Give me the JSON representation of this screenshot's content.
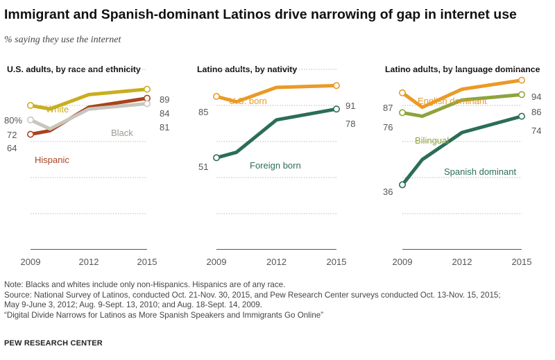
{
  "header": {
    "title": "Immigrant and Spanish-dominant  Latinos drive narrowing of gap in internet use",
    "subtitle": "% saying they use the internet"
  },
  "notes": [
    "Note: Blacks and whites include only non-Hispanics. Hispanics are of any race.",
    "Source: National Survey of Latinos, conducted Oct. 21-Nov. 30, 2015, and Pew Research Center surveys conducted Oct. 13-Nov. 15, 2015;",
    "May 9-June 3, 2012; Aug. 9-Sept. 13, 2010; and Aug. 18-Sept. 14, 2009.",
    "“Digital Divide Narrows for Latinos as More Spanish Speakers and Immigrants Go Online”"
  ],
  "brand": "PEW RESEARCH CENTER",
  "chart_data": [
    {
      "type": "line",
      "title": "U.S. adults, by race and ethnicity",
      "x": [
        2009,
        2010,
        2012,
        2015
      ],
      "x_tick_labels": [
        "2009",
        "2012",
        "2015"
      ],
      "x_tick_values": [
        2009,
        2012,
        2015
      ],
      "ylim": [
        0,
        100
      ],
      "grid": true,
      "series": [
        {
          "name": "White",
          "values": [
            80,
            78,
            86,
            89
          ],
          "color": "#c9ae1e",
          "start_label": "80%",
          "end_label": "89"
        },
        {
          "name": "Hispanic",
          "values": [
            64,
            66,
            79,
            84
          ],
          "color": "#a8431f",
          "start_label": "64",
          "end_label": "84"
        },
        {
          "name": "Black",
          "values": [
            72,
            67,
            78,
            81
          ],
          "color": "#c8c6bd",
          "start_label": "72",
          "end_label": "81"
        }
      ]
    },
    {
      "type": "line",
      "title": "Latino adults, by nativity",
      "x": [
        2009,
        2010,
        2012,
        2015
      ],
      "x_tick_labels": [
        "2009",
        "2012",
        "2015"
      ],
      "x_tick_values": [
        2009,
        2012,
        2015
      ],
      "ylim": [
        0,
        100
      ],
      "grid": true,
      "series": [
        {
          "name": "U.S. born",
          "values": [
            85,
            82,
            90,
            91
          ],
          "color": "#ea9a27",
          "start_label": "85",
          "end_label": "91"
        },
        {
          "name": "Foreign born",
          "values": [
            51,
            54,
            72,
            78
          ],
          "color": "#2b6e58",
          "start_label": "51",
          "end_label": "78"
        }
      ]
    },
    {
      "type": "line",
      "title": "Latino adults, by language dominance",
      "x": [
        2009,
        2010,
        2012,
        2015
      ],
      "x_tick_labels": [
        "2009",
        "2012",
        "2015"
      ],
      "x_tick_values": [
        2009,
        2012,
        2015
      ],
      "ylim": [
        0,
        100
      ],
      "grid": true,
      "series": [
        {
          "name": "English dominant",
          "values": [
            87,
            79,
            89,
            94
          ],
          "color": "#ea9a27",
          "start_label": "87",
          "end_label": "94"
        },
        {
          "name": "Bilingual",
          "values": [
            76,
            74,
            83,
            86
          ],
          "color": "#8ea33d",
          "start_label": "76",
          "end_label": "86"
        },
        {
          "name": "Spanish dominant",
          "values": [
            36,
            50,
            65,
            74
          ],
          "color": "#2b6e58",
          "start_label": "36",
          "end_label": "74"
        }
      ]
    }
  ]
}
